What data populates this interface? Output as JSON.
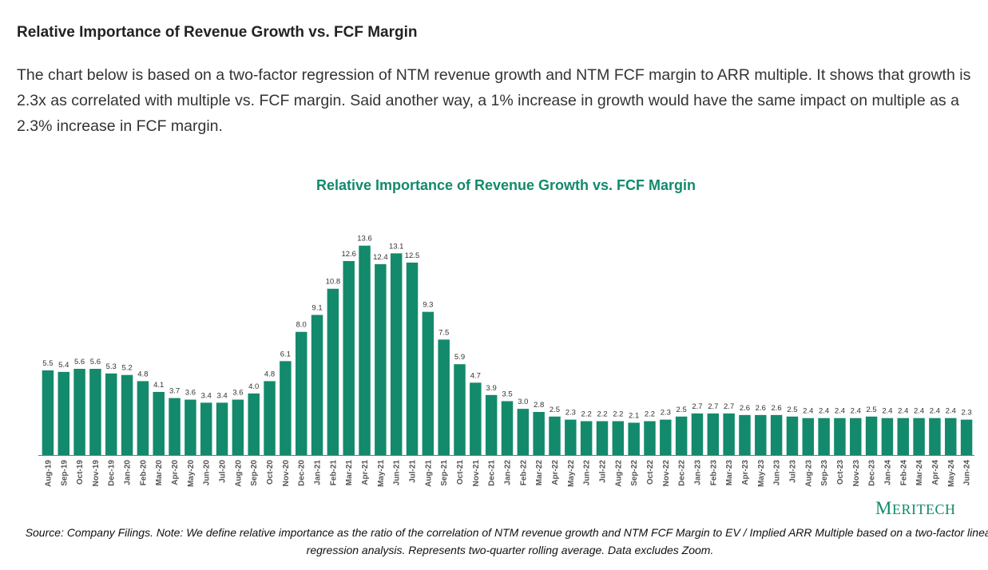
{
  "heading": "Relative Importance of Revenue Growth vs. FCF Margin",
  "intro": "The chart below is based on a two-factor regression of NTM revenue growth and NTM FCF margin to ARR multiple. It shows that growth is 2.3x as correlated with multiple vs. FCF margin. Said another way, a 1% increase in growth would have the same impact on multiple as a 2.3% increase in FCF margin.",
  "brand": {
    "first": "M",
    "rest": "ERITECH"
  },
  "source": "Source: Company Filings. Note: We define relative importance as the ratio of the correlation of NTM revenue growth and NTM FCF Margin to EV / Implied ARR Multiple based on a two-factor linear regression analysis. Represents two-quarter rolling average. Data excludes Zoom.",
  "colors": {
    "bar": "#138a6c",
    "title": "#128a6b",
    "axis": "#555555"
  },
  "chart_data": {
    "type": "bar",
    "title": "Relative Importance of Revenue Growth vs. FCF Margin",
    "xlabel": "",
    "ylabel": "",
    "ylim": [
      0,
      14
    ],
    "grid": false,
    "categories": [
      "Aug-19",
      "Sep-19",
      "Oct-19",
      "Nov-19",
      "Dec-19",
      "Jan-20",
      "Feb-20",
      "Mar-20",
      "Apr-20",
      "May-20",
      "Jun-20",
      "Jul-20",
      "Aug-20",
      "Sep-20",
      "Oct-20",
      "Nov-20",
      "Dec-20",
      "Jan-21",
      "Feb-21",
      "Mar-21",
      "Apr-21",
      "May-21",
      "Jun-21",
      "Jul-21",
      "Aug-21",
      "Sep-21",
      "Oct-21",
      "Nov-21",
      "Dec-21",
      "Jan-22",
      "Feb-22",
      "Mar-22",
      "Apr-22",
      "May-22",
      "Jun-22",
      "Jul-22",
      "Aug-22",
      "Sep-22",
      "Oct-22",
      "Nov-22",
      "Dec-22",
      "Jan-23",
      "Feb-23",
      "Mar-23",
      "Apr-23",
      "May-23",
      "Jun-23",
      "Jul-23",
      "Aug-23",
      "Sep-23",
      "Oct-23",
      "Nov-23",
      "Dec-23",
      "Jan-24",
      "Feb-24",
      "Mar-24",
      "Apr-24",
      "May-24",
      "Jun-24"
    ],
    "values": [
      5.5,
      5.4,
      5.6,
      5.6,
      5.3,
      5.2,
      4.8,
      4.1,
      3.7,
      3.6,
      3.4,
      3.4,
      3.6,
      4.0,
      4.8,
      6.1,
      8.0,
      9.1,
      10.8,
      12.6,
      13.6,
      12.4,
      13.1,
      12.5,
      9.3,
      7.5,
      5.9,
      4.7,
      3.9,
      3.5,
      3.0,
      2.8,
      2.5,
      2.3,
      2.2,
      2.2,
      2.2,
      2.1,
      2.2,
      2.3,
      2.5,
      2.7,
      2.7,
      2.7,
      2.6,
      2.6,
      2.6,
      2.5,
      2.4,
      2.4,
      2.4,
      2.4,
      2.5,
      2.4,
      2.4,
      2.4,
      2.4,
      2.4,
      2.3
    ]
  }
}
